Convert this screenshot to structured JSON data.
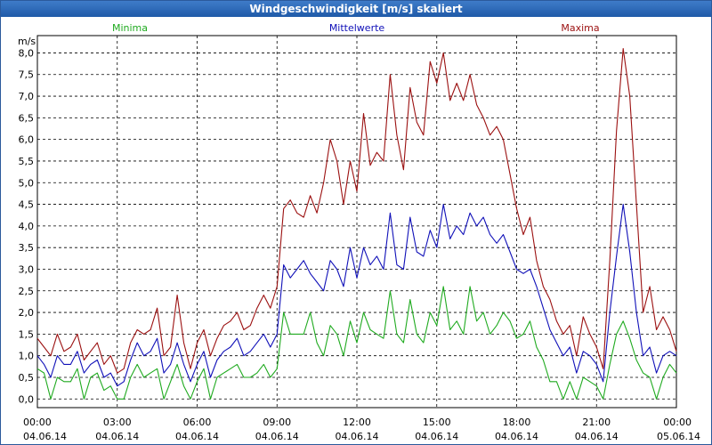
{
  "window": {
    "title": "Windgeschwindigkeit [m/s] skaliert"
  },
  "chart_data": {
    "type": "line",
    "title": "Windgeschwindigkeit [m/s] skaliert",
    "ylabel": "m/s",
    "ylim": [
      -0.2,
      8.4
    ],
    "y_ticks": [
      "0,0",
      "0,5",
      "1,0",
      "1,5",
      "2,0",
      "2,5",
      "3,0",
      "3,5",
      "4,0",
      "4,5",
      "5,0",
      "5,5",
      "6,0",
      "6,5",
      "7,0",
      "7,5",
      "8,0"
    ],
    "x_ticks": [
      {
        "time": "00:00",
        "date": "04.06.14"
      },
      {
        "time": "03:00",
        "date": "04.06.14"
      },
      {
        "time": "06:00",
        "date": "04.06.14"
      },
      {
        "time": "09:00",
        "date": "04.06.14"
      },
      {
        "time": "12:00",
        "date": "04.06.14"
      },
      {
        "time": "15:00",
        "date": "04.06.14"
      },
      {
        "time": "18:00",
        "date": "04.06.14"
      },
      {
        "time": "21:00",
        "date": "04.06.14"
      },
      {
        "time": "00:00",
        "date": "05.06.14"
      }
    ],
    "grid": true,
    "legend_position": "top",
    "x_hours": [
      0.0,
      0.25,
      0.5,
      0.75,
      1.0,
      1.25,
      1.5,
      1.75,
      2.0,
      2.25,
      2.5,
      2.75,
      3.0,
      3.25,
      3.5,
      3.75,
      4.0,
      4.25,
      4.5,
      4.75,
      5.0,
      5.25,
      5.5,
      5.75,
      6.0,
      6.25,
      6.5,
      6.75,
      7.0,
      7.25,
      7.5,
      7.75,
      8.0,
      8.25,
      8.5,
      8.75,
      9.0,
      9.25,
      9.5,
      9.75,
      10.0,
      10.25,
      10.5,
      10.75,
      11.0,
      11.25,
      11.5,
      11.75,
      12.0,
      12.25,
      12.5,
      12.75,
      13.0,
      13.25,
      13.5,
      13.75,
      14.0,
      14.25,
      14.5,
      14.75,
      15.0,
      15.25,
      15.5,
      15.75,
      16.0,
      16.25,
      16.5,
      16.75,
      17.0,
      17.25,
      17.5,
      17.75,
      18.0,
      18.25,
      18.5,
      18.75,
      19.0,
      19.25,
      19.5,
      19.75,
      20.0,
      20.25,
      20.5,
      20.75,
      21.0,
      21.25,
      21.5,
      21.75,
      22.0,
      22.25,
      22.5,
      22.75,
      23.0,
      23.25,
      23.5,
      23.75,
      24.0
    ],
    "series": [
      {
        "name": "Minima",
        "color": "#1faa1f",
        "values": [
          0.7,
          0.6,
          0.0,
          0.5,
          0.4,
          0.4,
          0.7,
          0.0,
          0.5,
          0.6,
          0.2,
          0.3,
          0.0,
          0.0,
          0.5,
          0.8,
          0.5,
          0.6,
          0.7,
          0.0,
          0.4,
          0.8,
          0.3,
          0.0,
          0.4,
          0.7,
          0.0,
          0.5,
          0.6,
          0.7,
          0.8,
          0.5,
          0.5,
          0.6,
          0.8,
          0.5,
          0.7,
          2.0,
          1.5,
          1.5,
          1.5,
          2.0,
          1.3,
          1.0,
          1.7,
          1.5,
          1.0,
          1.8,
          1.3,
          2.0,
          1.6,
          1.5,
          1.4,
          2.5,
          1.5,
          1.3,
          2.3,
          1.5,
          1.3,
          2.0,
          1.7,
          2.6,
          1.6,
          1.8,
          1.5,
          2.6,
          1.8,
          2.0,
          1.5,
          1.7,
          2.0,
          1.8,
          1.4,
          1.5,
          1.8,
          1.2,
          0.9,
          0.4,
          0.4,
          0.0,
          0.4,
          0.0,
          0.5,
          0.4,
          0.3,
          0.0,
          0.8,
          1.5,
          1.8,
          1.4,
          0.9,
          0.6,
          0.5,
          0.0,
          0.5,
          0.8,
          0.6
        ]
      },
      {
        "name": "Mittelwerte",
        "color": "#1010b8",
        "values": [
          1.0,
          0.8,
          0.5,
          1.0,
          0.8,
          0.8,
          1.1,
          0.6,
          0.8,
          0.9,
          0.5,
          0.6,
          0.3,
          0.4,
          0.9,
          1.3,
          1.0,
          1.1,
          1.4,
          0.6,
          0.8,
          1.3,
          0.8,
          0.4,
          0.8,
          1.1,
          0.5,
          0.9,
          1.1,
          1.2,
          1.4,
          1.0,
          1.1,
          1.3,
          1.5,
          1.2,
          1.5,
          3.1,
          2.8,
          3.0,
          3.2,
          2.9,
          2.7,
          2.5,
          3.2,
          3.0,
          2.6,
          3.5,
          2.8,
          3.5,
          3.1,
          3.3,
          3.0,
          4.3,
          3.1,
          3.0,
          4.2,
          3.4,
          3.3,
          3.9,
          3.5,
          4.5,
          3.7,
          4.0,
          3.8,
          4.3,
          4.0,
          4.2,
          3.8,
          3.6,
          3.8,
          3.4,
          3.0,
          2.9,
          3.0,
          2.6,
          2.1,
          1.6,
          1.3,
          1.0,
          1.2,
          0.6,
          1.1,
          1.0,
          0.8,
          0.4,
          2.0,
          3.3,
          4.5,
          3.4,
          2.0,
          1.0,
          1.2,
          0.6,
          1.0,
          1.1,
          1.0
        ]
      },
      {
        "name": "Maxima",
        "color": "#9b1010",
        "values": [
          1.4,
          1.2,
          1.0,
          1.5,
          1.1,
          1.2,
          1.5,
          0.9,
          1.1,
          1.3,
          0.8,
          1.0,
          0.6,
          0.7,
          1.3,
          1.6,
          1.5,
          1.6,
          2.1,
          1.0,
          1.2,
          2.4,
          1.3,
          0.7,
          1.3,
          1.6,
          1.0,
          1.4,
          1.7,
          1.8,
          2.0,
          1.6,
          1.7,
          2.1,
          2.4,
          2.1,
          2.6,
          4.4,
          4.6,
          4.3,
          4.2,
          4.7,
          4.3,
          5.0,
          6.0,
          5.5,
          4.5,
          5.5,
          4.8,
          6.6,
          5.4,
          5.7,
          5.5,
          7.5,
          6.1,
          5.3,
          7.2,
          6.4,
          6.1,
          7.8,
          7.3,
          8.0,
          6.9,
          7.3,
          6.9,
          7.5,
          6.8,
          6.5,
          6.1,
          6.3,
          6.0,
          5.2,
          4.4,
          3.8,
          4.2,
          3.2,
          2.6,
          2.3,
          1.8,
          1.5,
          1.7,
          1.0,
          1.9,
          1.5,
          1.2,
          0.7,
          3.2,
          6.2,
          8.1,
          7.0,
          4.5,
          2.0,
          2.6,
          1.6,
          1.9,
          1.6,
          1.1
        ]
      }
    ]
  }
}
